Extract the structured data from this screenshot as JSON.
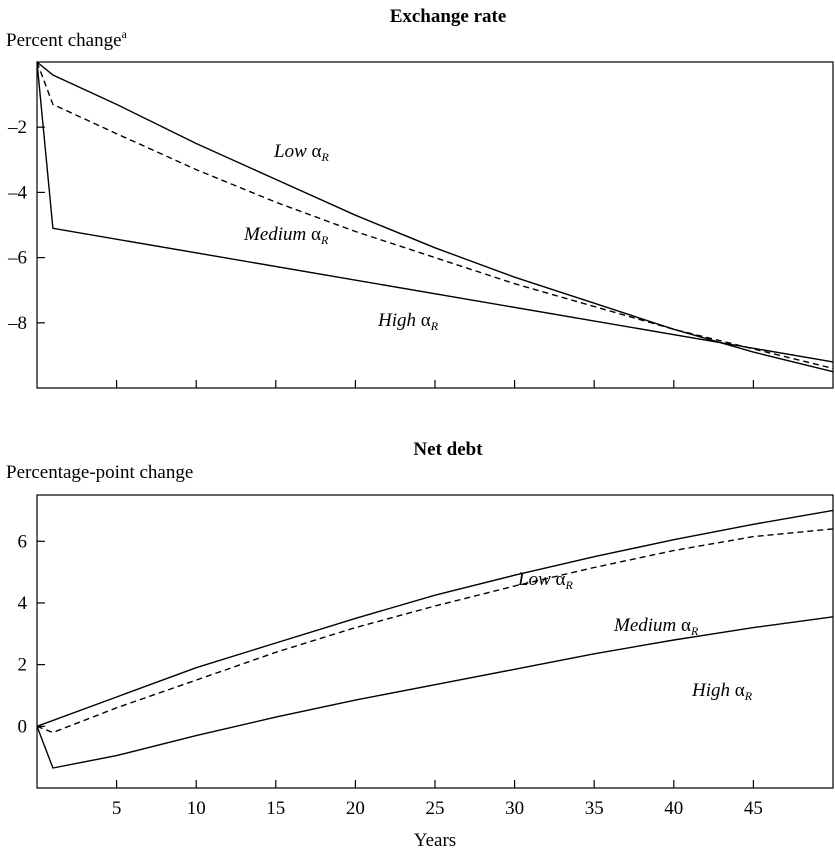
{
  "chart_data": [
    {
      "type": "line",
      "title": "Exchange rate",
      "ylabel": "Percent change",
      "ylabel_note": "a",
      "xlabel": "",
      "xlim": [
        0,
        50
      ],
      "ylim": [
        -10,
        0
      ],
      "xticks": [
        5,
        10,
        15,
        20,
        25,
        30,
        35,
        40,
        45
      ],
      "yticks": [
        -2,
        -4,
        -6,
        -8
      ],
      "ytick_labels": [
        "–2",
        "–4",
        "–6",
        "–8"
      ],
      "show_xtick_labels": false,
      "grid": false,
      "series": [
        {
          "name": "Low",
          "symbol": "α",
          "subscript": "R",
          "style": "solid",
          "x": [
            0,
            1,
            5,
            10,
            15,
            20,
            25,
            30,
            35,
            40,
            45,
            50
          ],
          "y": [
            0,
            -0.4,
            -1.3,
            -2.5,
            -3.6,
            -4.7,
            -5.7,
            -6.6,
            -7.4,
            -8.2,
            -8.9,
            -9.5
          ]
        },
        {
          "name": "Medium",
          "symbol": "α",
          "subscript": "R",
          "style": "dashed",
          "x": [
            0,
            1,
            5,
            10,
            15,
            20,
            25,
            30,
            35,
            40,
            45,
            50
          ],
          "y": [
            0,
            -1.3,
            -2.2,
            -3.3,
            -4.3,
            -5.2,
            -6.0,
            -6.8,
            -7.5,
            -8.2,
            -8.8,
            -9.4
          ]
        },
        {
          "name": "High",
          "symbol": "α",
          "subscript": "R",
          "style": "solid",
          "x": [
            0,
            1,
            50
          ],
          "y": [
            0,
            -5.1,
            -9.2
          ]
        }
      ]
    },
    {
      "type": "line",
      "title": "Net debt",
      "ylabel": "Percentage-point change",
      "xlabel": "Years",
      "xlim": [
        0,
        50
      ],
      "ylim": [
        -2,
        7.5
      ],
      "xticks": [
        5,
        10,
        15,
        20,
        25,
        30,
        35,
        40,
        45
      ],
      "yticks": [
        0,
        2,
        4,
        6
      ],
      "show_xtick_labels": true,
      "grid": false,
      "series": [
        {
          "name": "Low",
          "symbol": "α",
          "subscript": "R",
          "style": "solid",
          "x": [
            0,
            5,
            10,
            15,
            20,
            25,
            30,
            35,
            40,
            45,
            50
          ],
          "y": [
            0,
            0.95,
            1.9,
            2.7,
            3.5,
            4.25,
            4.9,
            5.5,
            6.05,
            6.55,
            7.0
          ]
        },
        {
          "name": "Medium",
          "symbol": "α",
          "subscript": "R",
          "style": "dashed",
          "x": [
            0,
            1,
            5,
            10,
            15,
            20,
            25,
            30,
            35,
            40,
            45,
            50
          ],
          "y": [
            0,
            -0.2,
            0.6,
            1.5,
            2.4,
            3.2,
            3.9,
            4.55,
            5.15,
            5.7,
            6.15,
            6.4
          ]
        },
        {
          "name": "High",
          "symbol": "α",
          "subscript": "R",
          "style": "solid",
          "x": [
            0,
            1,
            5,
            10,
            15,
            20,
            25,
            30,
            35,
            40,
            45,
            50
          ],
          "y": [
            0,
            -1.35,
            -0.95,
            -0.3,
            0.3,
            0.85,
            1.35,
            1.85,
            2.35,
            2.8,
            3.2,
            3.55
          ]
        }
      ]
    }
  ]
}
